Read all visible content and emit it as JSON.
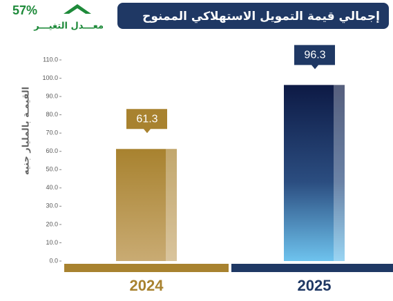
{
  "chart_data": {
    "type": "bar",
    "title": "إجمالي قيمة التمويل الاستهلاكي الممنوح",
    "change_value": "57%",
    "change_label": "معـــدل التغيـــر",
    "ylabel": "القيمـة بالمليار جنيه",
    "categories": [
      "2024",
      "2025"
    ],
    "values": [
      61.3,
      96.3
    ],
    "colors": [
      "#a8822f",
      "#0d1a45"
    ],
    "ylim": [
      0,
      110
    ],
    "yticks": [
      {
        "value": 0,
        "label": "0.0"
      },
      {
        "value": 10,
        "label": "10.0"
      },
      {
        "value": 20,
        "label": "20.0"
      },
      {
        "value": 30,
        "label": "30.0"
      },
      {
        "value": 40,
        "label": "40.0"
      },
      {
        "value": 50,
        "label": "50.0"
      },
      {
        "value": 60,
        "label": "60.0"
      },
      {
        "value": 70,
        "label": "70.0"
      },
      {
        "value": 80,
        "label": "80.0"
      },
      {
        "value": 90,
        "label": "90.0"
      },
      {
        "value": 100,
        "label": "100.0"
      },
      {
        "value": 110,
        "label": "110.0"
      }
    ],
    "grid": false
  }
}
